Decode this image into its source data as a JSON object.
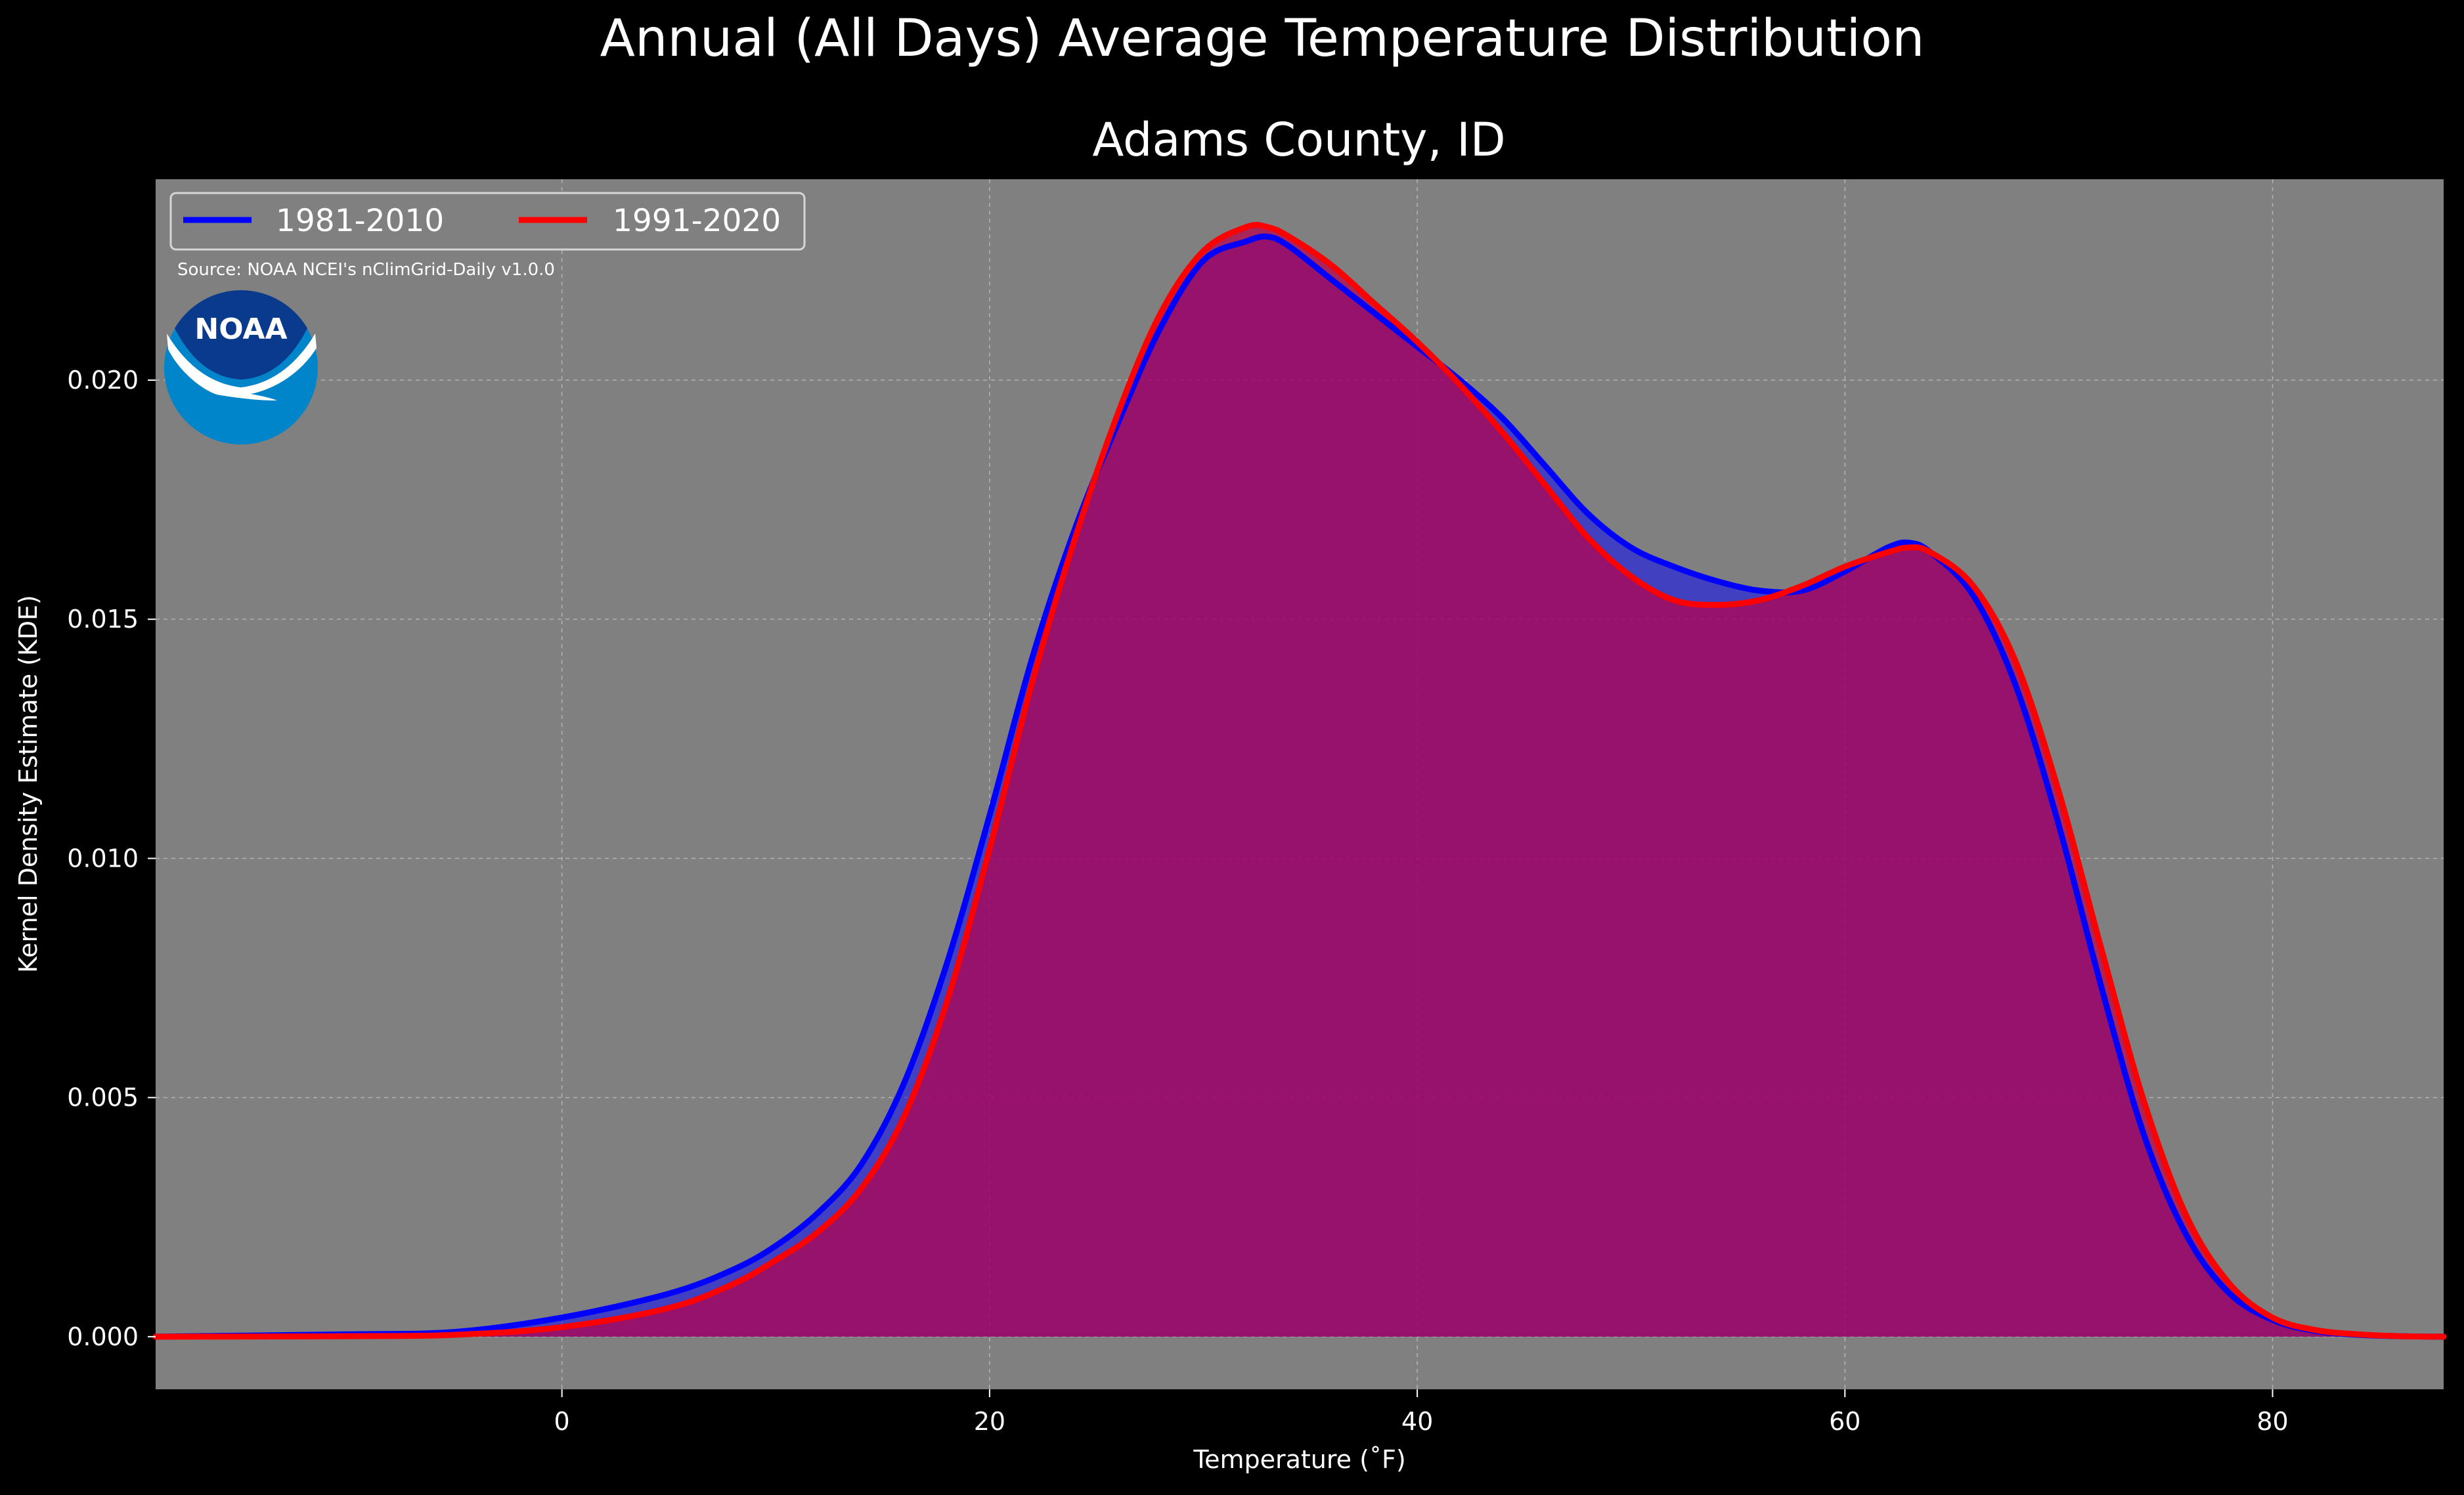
{
  "figure": {
    "suptitle": "Annual (All Days) Average Temperature Distribution",
    "title": "Adams County, ID",
    "source": "Source: NOAA NCEI's nClimGrid-Daily v1.0.0",
    "logo_text": "NOAA"
  },
  "colors": {
    "background": "#000000",
    "plot_background": "#808080",
    "grid": "#c4c4c4",
    "text": "#ffffff",
    "series_1981": "#0000ff",
    "series_1991": "#ff0000",
    "fill_overlap": "#9c1f5c",
    "noaa_dark_blue": "#0a3a8c",
    "noaa_light_blue": "#0085ca"
  },
  "chart_data": {
    "type": "area",
    "title": "Adams County, ID",
    "xlabel": "Temperature ($^\\circ$F)",
    "xlabel_display": "Temperature (˚F)",
    "ylabel": "Kernel Density Estimate (KDE)",
    "xlim": [
      -19,
      88
    ],
    "ylim": [
      -0.0011,
      0.0242
    ],
    "xticks": [
      0,
      20,
      40,
      60,
      80
    ],
    "xtick_labels": [
      "0",
      "20",
      "40",
      "60",
      "80"
    ],
    "yticks": [
      0.0,
      0.005,
      0.01,
      0.015,
      0.02
    ],
    "ytick_labels": [
      "0.000",
      "0.005",
      "0.010",
      "0.015",
      "0.020"
    ],
    "grid": true,
    "legend_position": "top-left",
    "series": [
      {
        "name": "1981-2010",
        "color": "#0000ff",
        "x": [
          -19,
          -10,
          -5,
          0,
          5,
          8,
          10,
          12,
          14,
          16,
          18,
          20,
          22,
          24,
          26,
          28,
          30,
          32,
          33,
          34,
          36,
          38,
          40,
          42,
          44,
          46,
          48,
          50,
          52,
          54,
          56,
          58,
          60,
          62,
          63,
          64,
          66,
          68,
          70,
          72,
          74,
          76,
          78,
          80,
          82,
          84,
          86,
          88
        ],
        "y": [
          0.0,
          5e-05,
          0.0001,
          0.0004,
          0.0009,
          0.0014,
          0.0019,
          0.0026,
          0.0036,
          0.0053,
          0.0078,
          0.0109,
          0.0142,
          0.0169,
          0.0191,
          0.0211,
          0.0225,
          0.0229,
          0.023,
          0.0228,
          0.0221,
          0.0214,
          0.0207,
          0.02,
          0.0192,
          0.0182,
          0.0172,
          0.0165,
          0.0161,
          0.0158,
          0.0156,
          0.0156,
          0.016,
          0.0165,
          0.0166,
          0.0164,
          0.0155,
          0.0136,
          0.0107,
          0.0073,
          0.0042,
          0.0021,
          0.0009,
          0.00035,
          0.00012,
          4e-05,
          1e-05,
          0.0
        ]
      },
      {
        "name": "1991-2020",
        "color": "#ff0000",
        "x": [
          -19,
          -10,
          -5,
          0,
          5,
          8,
          10,
          12,
          14,
          16,
          18,
          20,
          22,
          24,
          26,
          28,
          30,
          32,
          33,
          34,
          36,
          38,
          40,
          42,
          44,
          46,
          48,
          50,
          52,
          54,
          56,
          58,
          60,
          62,
          63,
          64,
          66,
          68,
          70,
          72,
          74,
          76,
          78,
          80,
          82,
          84,
          86,
          88
        ],
        "y": [
          0.0,
          1e-05,
          4e-05,
          0.0002,
          0.0006,
          0.0011,
          0.0016,
          0.0022,
          0.0031,
          0.0046,
          0.007,
          0.0102,
          0.0137,
          0.0167,
          0.0193,
          0.0214,
          0.0227,
          0.0232,
          0.0232,
          0.023,
          0.0224,
          0.0216,
          0.0208,
          0.0199,
          0.0189,
          0.0178,
          0.0167,
          0.0159,
          0.0154,
          0.0153,
          0.0154,
          0.0157,
          0.0161,
          0.0164,
          0.0165,
          0.0164,
          0.0157,
          0.0141,
          0.0114,
          0.0081,
          0.0049,
          0.0025,
          0.0011,
          0.0004,
          0.00014,
          5e-05,
          1e-05,
          0.0
        ]
      }
    ]
  }
}
